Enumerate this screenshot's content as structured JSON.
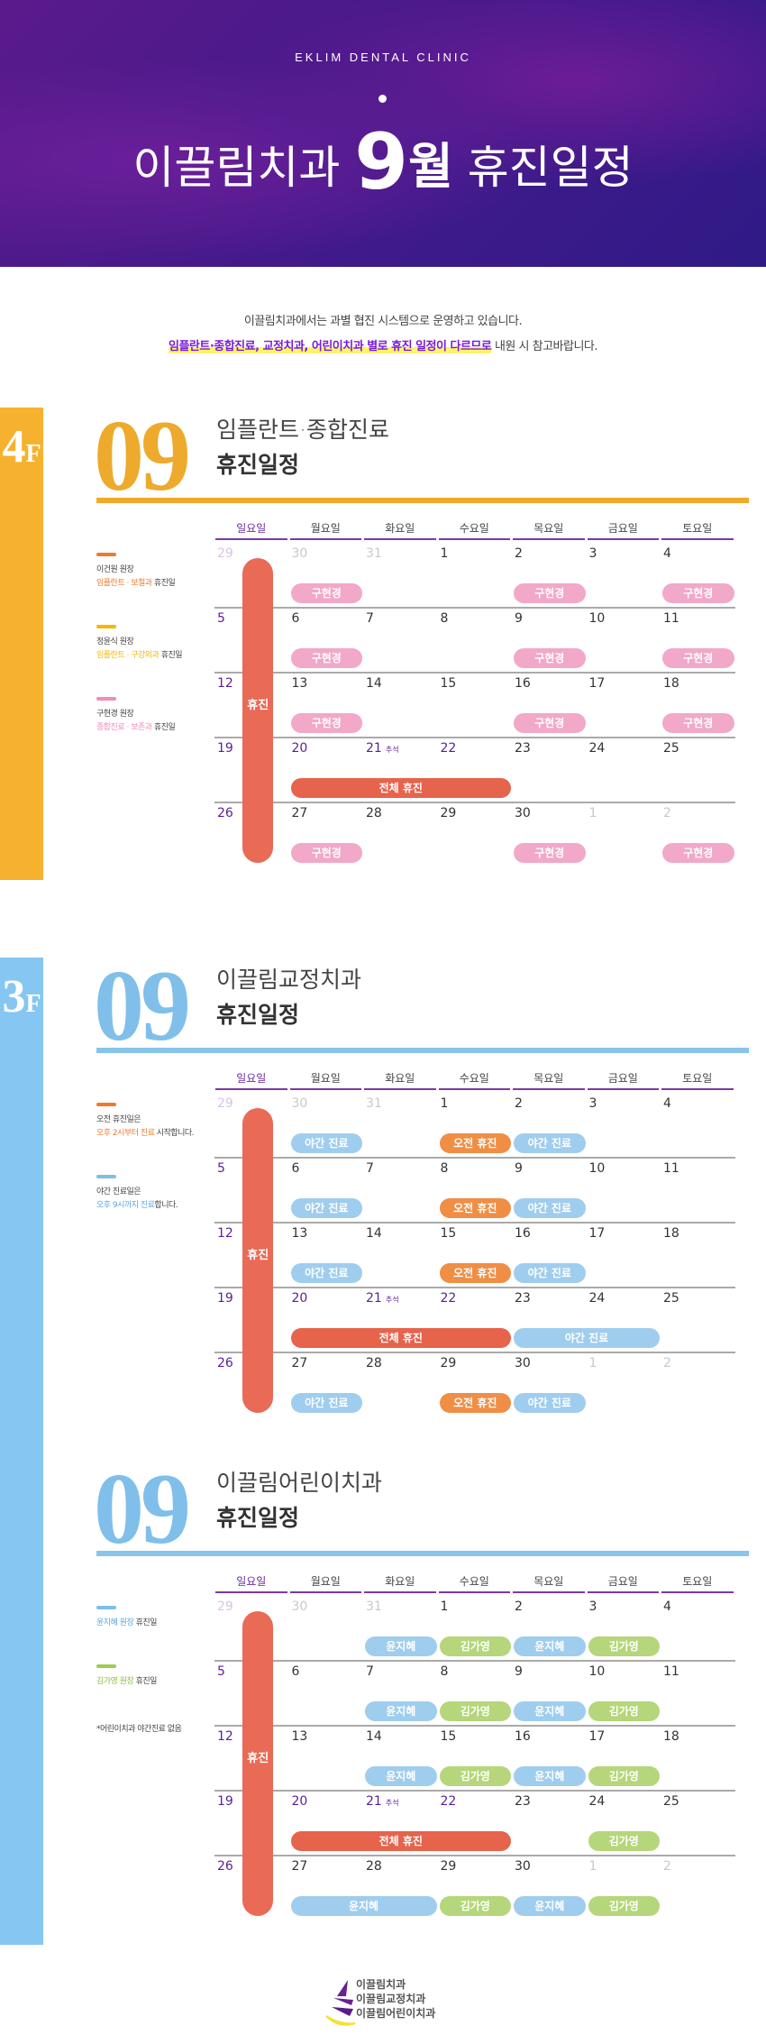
{
  "header": {
    "brand": "EKLIM DENTAL CLINIC",
    "title_pre": "이끌림치과",
    "title_num": "9",
    "title_month": "월",
    "title_post": "휴진일정"
  },
  "intro": {
    "line1": "이끌림치과에서는 과별 협진 시스템으로 운영하고 있습니다.",
    "line2_highlight": "임플란트·종합진료, 교정치과, 어린이치과 별로 휴진 일정이 다르므로",
    "line2_rest": " 내원 시 참고바랍니다."
  },
  "colors": {
    "yellow": "#f6b22e",
    "blue": "#86c6f2",
    "purple": "#5a1f96",
    "red": "#e6634c",
    "pink": "#f2a8c8",
    "lightblue": "#9fcdee",
    "orange": "#f08e45",
    "green": "#b5d67a"
  },
  "weekdays": [
    "일요일",
    "월요일",
    "화요일",
    "수요일",
    "목요일",
    "금요일",
    "토요일"
  ],
  "weeks": [
    [
      {
        "d": "29",
        "s": "first"
      },
      {
        "d": "30",
        "s": "other"
      },
      {
        "d": "31",
        "s": "other"
      },
      {
        "d": "1"
      },
      {
        "d": "2"
      },
      {
        "d": "3"
      },
      {
        "d": "4"
      }
    ],
    [
      {
        "d": "5",
        "s": "purple"
      },
      {
        "d": "6"
      },
      {
        "d": "7"
      },
      {
        "d": "8"
      },
      {
        "d": "9"
      },
      {
        "d": "10"
      },
      {
        "d": "11"
      }
    ],
    [
      {
        "d": "12",
        "s": "purple"
      },
      {
        "d": "13"
      },
      {
        "d": "14"
      },
      {
        "d": "15"
      },
      {
        "d": "16"
      },
      {
        "d": "17"
      },
      {
        "d": "18"
      }
    ],
    [
      {
        "d": "19",
        "s": "purple"
      },
      {
        "d": "20",
        "s": "purple"
      },
      {
        "d": "21",
        "s": "purple",
        "note": "추석"
      },
      {
        "d": "22",
        "s": "purple"
      },
      {
        "d": "23"
      },
      {
        "d": "24"
      },
      {
        "d": "25"
      }
    ],
    [
      {
        "d": "26",
        "s": "purple"
      },
      {
        "d": "27"
      },
      {
        "d": "28"
      },
      {
        "d": "29"
      },
      {
        "d": "30"
      },
      {
        "d": "1",
        "s": "other"
      },
      {
        "d": "2",
        "s": "other"
      }
    ]
  ],
  "sunday_closed_label": "휴진",
  "sections": [
    {
      "floor": "4",
      "floor_suffix": "F",
      "month": "09",
      "accent": "yellow",
      "title": "임플란트·종합진료",
      "subtitle": "휴진일정",
      "legend": [
        {
          "color": "#f07a2c",
          "name": "이건원 원장",
          "desc_colored": "임플란트 · 보철과",
          "desc_rest": " 휴진일"
        },
        {
          "color": "#f7b600",
          "name": "정윤식 원장",
          "desc_colored": "임플란트 · 구강외과",
          "desc_rest": " 휴진일"
        },
        {
          "color": "#f08cb8",
          "name": "구현경 원장",
          "desc_colored": "종합진료 · 보존과",
          "desc_rest": " 휴진일"
        }
      ],
      "pills": [
        {
          "week": 0,
          "from": 1,
          "to": 1,
          "label": "구현경",
          "color": "pink"
        },
        {
          "week": 0,
          "from": 4,
          "to": 4,
          "label": "구현경",
          "color": "pink"
        },
        {
          "week": 0,
          "from": 6,
          "to": 6,
          "label": "구현경",
          "color": "pink"
        },
        {
          "week": 1,
          "from": 1,
          "to": 1,
          "label": "구현경",
          "color": "pink"
        },
        {
          "week": 1,
          "from": 4,
          "to": 4,
          "label": "구현경",
          "color": "pink"
        },
        {
          "week": 1,
          "from": 6,
          "to": 6,
          "label": "구현경",
          "color": "pink"
        },
        {
          "week": 2,
          "from": 1,
          "to": 1,
          "label": "구현경",
          "color": "pink"
        },
        {
          "week": 2,
          "from": 4,
          "to": 4,
          "label": "구현경",
          "color": "pink"
        },
        {
          "week": 2,
          "from": 6,
          "to": 6,
          "label": "구현경",
          "color": "pink"
        },
        {
          "week": 3,
          "from": 1,
          "to": 3,
          "label": "전체 휴진",
          "color": "red"
        },
        {
          "week": 4,
          "from": 1,
          "to": 1,
          "label": "구현경",
          "color": "pink"
        },
        {
          "week": 4,
          "from": 4,
          "to": 4,
          "label": "구현경",
          "color": "pink"
        },
        {
          "week": 4,
          "from": 6,
          "to": 6,
          "label": "구현경",
          "color": "pink"
        }
      ]
    },
    {
      "floor": "3",
      "floor_suffix": "F",
      "month": "09",
      "accent": "blue",
      "title": "이끌림교정치과",
      "subtitle": "휴진일정",
      "legend": [
        {
          "color": "#f07a2c",
          "name": "오전 휴진일은",
          "desc_colored": "오후 2시부터 진료",
          "desc_colored_color": "#f07a2c",
          "desc_rest": " 시작합니다."
        },
        {
          "color": "#7dbfea",
          "name": "야간 진료일은",
          "desc_colored": "오후 9시까지 진료",
          "desc_colored_color": "#5aa8e0",
          "desc_rest": "합니다."
        }
      ],
      "pills": [
        {
          "week": 0,
          "from": 1,
          "to": 1,
          "label": "야간 진료",
          "color": "lightblue"
        },
        {
          "week": 0,
          "from": 3,
          "to": 3,
          "label": "오전 휴진",
          "color": "orange"
        },
        {
          "week": 0,
          "from": 4,
          "to": 4,
          "label": "야간 진료",
          "color": "lightblue"
        },
        {
          "week": 1,
          "from": 1,
          "to": 1,
          "label": "야간 진료",
          "color": "lightblue"
        },
        {
          "week": 1,
          "from": 3,
          "to": 3,
          "label": "오전 휴진",
          "color": "orange"
        },
        {
          "week": 1,
          "from": 4,
          "to": 4,
          "label": "야간 진료",
          "color": "lightblue"
        },
        {
          "week": 2,
          "from": 1,
          "to": 1,
          "label": "야간 진료",
          "color": "lightblue"
        },
        {
          "week": 2,
          "from": 3,
          "to": 3,
          "label": "오전 휴진",
          "color": "orange"
        },
        {
          "week": 2,
          "from": 4,
          "to": 4,
          "label": "야간 진료",
          "color": "lightblue"
        },
        {
          "week": 3,
          "from": 1,
          "to": 3,
          "label": "전체 휴진",
          "color": "red"
        },
        {
          "week": 3,
          "from": 4,
          "to": 5,
          "label": "야간 진료",
          "color": "lightblue"
        },
        {
          "week": 4,
          "from": 1,
          "to": 1,
          "label": "야간 진료",
          "color": "lightblue"
        },
        {
          "week": 4,
          "from": 3,
          "to": 3,
          "label": "오전 휴진",
          "color": "orange"
        },
        {
          "week": 4,
          "from": 4,
          "to": 4,
          "label": "야간 진료",
          "color": "lightblue"
        }
      ]
    },
    {
      "floor": "",
      "floor_suffix": "",
      "month": "09",
      "accent": "blue",
      "title": "이끌림어린이치과",
      "subtitle": "휴진일정",
      "legend": [
        {
          "color": "#7dbfea",
          "name": "",
          "desc_colored": "윤지혜 원장",
          "desc_colored_color": "#5aa8e0",
          "desc_rest": " 휴진일"
        },
        {
          "color": "#9ccc50",
          "name": "",
          "desc_colored": "김가영 원장",
          "desc_colored_color": "#8cc040",
          "desc_rest": " 휴진일"
        },
        {
          "color": "",
          "name": "",
          "desc_colored": "",
          "desc_rest": "*어린이치과 야간진료 없음"
        }
      ],
      "pills": [
        {
          "week": 0,
          "from": 2,
          "to": 2,
          "label": "윤지혜",
          "color": "lightblue"
        },
        {
          "week": 0,
          "from": 3,
          "to": 3,
          "label": "김가영",
          "color": "green"
        },
        {
          "week": 0,
          "from": 4,
          "to": 4,
          "label": "윤지혜",
          "color": "lightblue"
        },
        {
          "week": 0,
          "from": 5,
          "to": 5,
          "label": "김가영",
          "color": "green"
        },
        {
          "week": 1,
          "from": 2,
          "to": 2,
          "label": "윤지혜",
          "color": "lightblue"
        },
        {
          "week": 1,
          "from": 3,
          "to": 3,
          "label": "김가영",
          "color": "green"
        },
        {
          "week": 1,
          "from": 4,
          "to": 4,
          "label": "윤지혜",
          "color": "lightblue"
        },
        {
          "week": 1,
          "from": 5,
          "to": 5,
          "label": "김가영",
          "color": "green"
        },
        {
          "week": 2,
          "from": 2,
          "to": 2,
          "label": "윤지혜",
          "color": "lightblue"
        },
        {
          "week": 2,
          "from": 3,
          "to": 3,
          "label": "김가영",
          "color": "green"
        },
        {
          "week": 2,
          "from": 4,
          "to": 4,
          "label": "윤지혜",
          "color": "lightblue"
        },
        {
          "week": 2,
          "from": 5,
          "to": 5,
          "label": "김가영",
          "color": "green"
        },
        {
          "week": 3,
          "from": 1,
          "to": 3,
          "label": "전체 휴진",
          "color": "red"
        },
        {
          "week": 3,
          "from": 5,
          "to": 5,
          "label": "김가영",
          "color": "green"
        },
        {
          "week": 4,
          "from": 1,
          "to": 2,
          "label": "윤지혜",
          "color": "lightblue"
        },
        {
          "week": 4,
          "from": 3,
          "to": 3,
          "label": "김가영",
          "color": "green"
        },
        {
          "week": 4,
          "from": 4,
          "to": 4,
          "label": "윤지혜",
          "color": "lightblue"
        },
        {
          "week": 4,
          "from": 5,
          "to": 5,
          "label": "김가영",
          "color": "green"
        }
      ]
    }
  ],
  "footer": {
    "lines": [
      "이끌림치과",
      "이끌림교정치과",
      "이끌림어린이치과"
    ]
  }
}
